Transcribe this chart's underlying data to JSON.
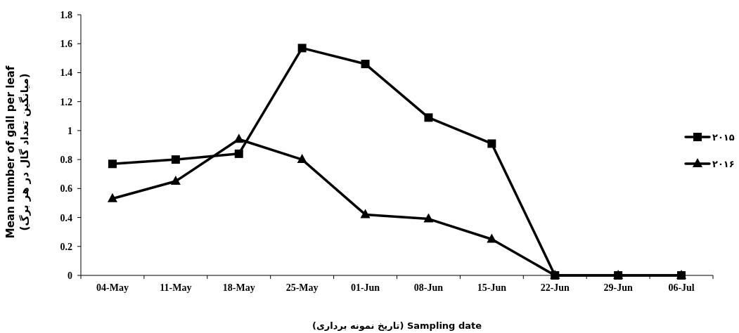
{
  "chart_data": {
    "type": "line",
    "xlabel": "(تاریخ نمونه برداری) Sampling date",
    "ylabel": "Mean number of gall per leaf (میانگین تعداد گال در هر برگ)",
    "categories": [
      "04-May",
      "11-May",
      "18-May",
      "25-May",
      "01-Jun",
      "08-Jun",
      "15-Jun",
      "22-Jun",
      "29-Jun",
      "06-Jul"
    ],
    "series": [
      {
        "name": "۲۰۱۵",
        "color": "#000000",
        "marker": "square",
        "values": [
          0.77,
          0.8,
          0.84,
          1.57,
          1.46,
          1.09,
          0.91,
          0,
          0,
          0
        ]
      },
      {
        "name": "۲۰۱۶",
        "color": "#000000",
        "marker": "triangle",
        "values": [
          0.53,
          0.65,
          0.94,
          0.8,
          0.42,
          0.39,
          0.25,
          0,
          0,
          0
        ]
      }
    ],
    "ylim": [
      0,
      1.8
    ],
    "yticks": [
      0,
      0.2,
      0.4,
      0.6,
      0.8,
      1,
      1.2,
      1.4,
      1.6,
      1.8
    ],
    "grid": false,
    "legend": "right",
    "line_style": "solid"
  }
}
